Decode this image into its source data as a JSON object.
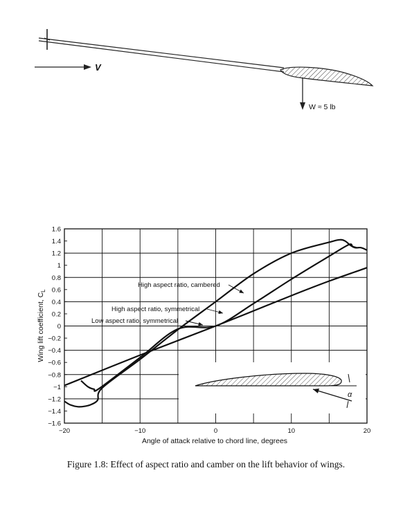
{
  "top_figure": {
    "velocity_label": "V",
    "weight_label": "W ≈ 5 lb"
  },
  "chart_data": {
    "type": "line",
    "xlabel": "Angle of attack relative to chord line, degrees",
    "ylabel": "Wing lift coefficient, C",
    "ylabel_subscript": "L",
    "xlim": [
      -20,
      20
    ],
    "ylim": [
      -1.6,
      1.6
    ],
    "x_major_ticks": [
      -20,
      -10,
      0,
      10,
      20
    ],
    "x_minor_ticks": [
      -15,
      -5,
      5,
      15
    ],
    "y_ticks": [
      -1.6,
      -1.4,
      -1.2,
      -1,
      -0.8,
      -0.6,
      -0.4,
      -0.2,
      0,
      0.2,
      0.4,
      0.6,
      0.8,
      1,
      1.2,
      1.4,
      1.6
    ],
    "y_tick_labels": [
      "−1.6",
      "−1.4",
      "−1.2",
      "−1",
      "−0.8",
      "−0.6",
      "−0.4",
      "−0.2",
      "0",
      "0.2",
      "0.4",
      "0.6",
      "0.8",
      "1",
      "1.2",
      "1.4",
      "1.6"
    ],
    "x_tick_labels": [
      "−20",
      "−10",
      "0",
      "10",
      "20"
    ],
    "grid": true,
    "series": [
      {
        "name": "High aspect ratio, cambered",
        "points": [
          [
            -20,
            -1.24
          ],
          [
            -19.2,
            -1.3
          ],
          [
            -18.2,
            -1.33
          ],
          [
            -17.2,
            -1.32
          ],
          [
            -16.4,
            -1.29
          ],
          [
            -15.6,
            -1.22
          ],
          [
            -15,
            -1.02
          ],
          [
            -10,
            -0.55
          ],
          [
            -5,
            -0.06
          ],
          [
            0,
            0.4
          ],
          [
            5,
            0.86
          ],
          [
            10,
            1.2
          ],
          [
            15,
            1.38
          ],
          [
            16.4,
            1.42
          ],
          [
            17.1,
            1.4
          ],
          [
            17.8,
            1.33
          ],
          [
            18.4,
            1.29
          ],
          [
            19.2,
            1.29
          ],
          [
            20,
            1.25
          ]
        ]
      },
      {
        "name": "High aspect ratio, symmetrical",
        "points": [
          [
            -17.8,
            -0.9
          ],
          [
            -16.9,
            -1.0
          ],
          [
            -16.1,
            -1.04
          ],
          [
            -15.4,
            -1.03
          ],
          [
            -10,
            -0.52
          ],
          [
            -5,
            -0.05
          ],
          [
            0,
            0.0
          ],
          [
            5,
            0.37
          ],
          [
            10,
            0.77
          ],
          [
            15,
            1.15
          ],
          [
            17.6,
            1.34
          ],
          [
            18.1,
            1.31
          ],
          [
            18.6,
            1.29
          ]
        ]
      },
      {
        "name": "Low aspect ratio, symmetrical",
        "points": [
          [
            -20,
            -0.98
          ],
          [
            -10,
            -0.48
          ],
          [
            0,
            0.0
          ],
          [
            10,
            0.5
          ],
          [
            15,
            0.74
          ],
          [
            20,
            0.96
          ]
        ]
      }
    ],
    "inset_label": "α"
  },
  "caption": "Figure 1.8: Effect of aspect ratio and camber on the lift behavior of wings."
}
